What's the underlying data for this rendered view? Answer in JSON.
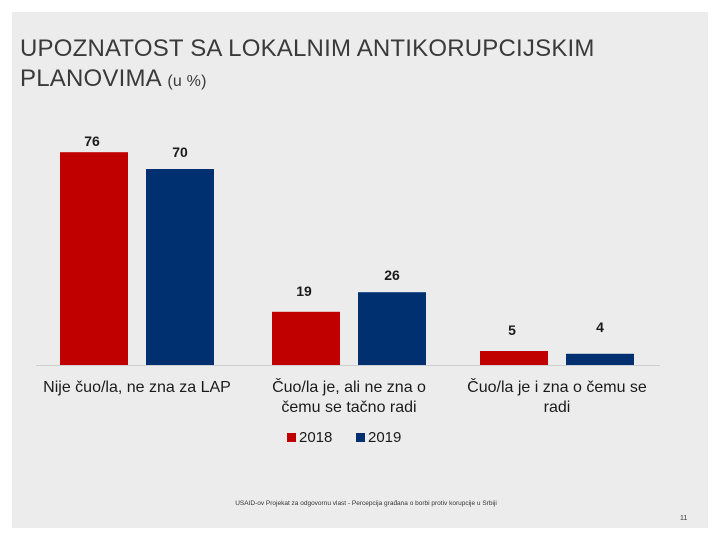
{
  "slide": {
    "title": "UPOZNATOST SA LOKALNIM ANTIKORUPCIJSKIM PLANOVIMA",
    "title_unit": "(u %)",
    "footer": "USAID-ov Projekat za odgovornu vlast - Percepcija građana o borbi protiv korupcije u Srbiji",
    "page_number": "11"
  },
  "chart_data": {
    "type": "bar",
    "categories": [
      [
        "Nije čuo/la, ne zna za LAP"
      ],
      [
        "Čuo/la je, ali ne zna o",
        "čemu se tačno radi"
      ],
      [
        "Čuo/la je i zna o čemu se",
        "radi"
      ]
    ],
    "series": [
      {
        "name": "2018",
        "values": [
          76,
          19,
          5
        ],
        "color": "#c00000"
      },
      {
        "name": "2019",
        "values": [
          70,
          26,
          4
        ],
        "color": "#003070"
      }
    ],
    "ylim": [
      0,
      80
    ],
    "grid": false,
    "legend": "bottom-center",
    "data_labels": true
  }
}
